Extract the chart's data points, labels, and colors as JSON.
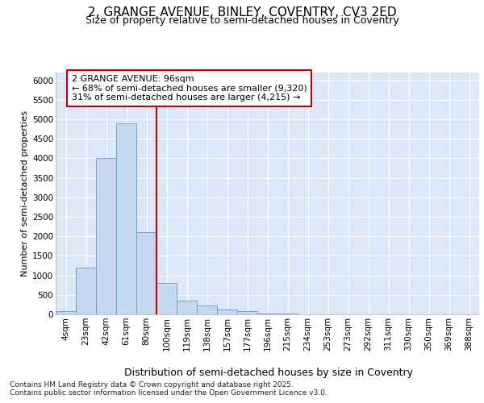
{
  "title_line1": "2, GRANGE AVENUE, BINLEY, COVENTRY, CV3 2ED",
  "title_line2": "Size of property relative to semi-detached houses in Coventry",
  "xlabel": "Distribution of semi-detached houses by size in Coventry",
  "ylabel": "Number of semi-detached properties",
  "categories": [
    "4sqm",
    "23sqm",
    "42sqm",
    "61sqm",
    "80sqm",
    "100sqm",
    "119sqm",
    "138sqm",
    "157sqm",
    "177sqm",
    "196sqm",
    "215sqm",
    "234sqm",
    "253sqm",
    "273sqm",
    "292sqm",
    "311sqm",
    "330sqm",
    "350sqm",
    "369sqm",
    "388sqm"
  ],
  "values": [
    75,
    1200,
    4000,
    4900,
    2100,
    800,
    350,
    230,
    130,
    75,
    30,
    25,
    5,
    0,
    0,
    0,
    0,
    0,
    0,
    0,
    0
  ],
  "bar_color": "#c5d8f0",
  "bar_edge_color": "#6699cc",
  "vline_x": 4.5,
  "annotation_line1": "2 GRANGE AVENUE: 96sqm",
  "annotation_line2": "← 68% of semi-detached houses are smaller (9,320)",
  "annotation_line3": "31% of semi-detached houses are larger (4,215) →",
  "ylim": [
    0,
    6200
  ],
  "yticks": [
    0,
    500,
    1000,
    1500,
    2000,
    2500,
    3000,
    3500,
    4000,
    4500,
    5000,
    5500,
    6000
  ],
  "grid_color": "#ffffff",
  "bg_color": "#dce8f8",
  "vline_color": "#cc0000",
  "ann_box_edge_color": "#cc0000",
  "footer_line1": "Contains HM Land Registry data © Crown copyright and database right 2025.",
  "footer_line2": "Contains public sector information licensed under the Open Government Licence v3.0.",
  "title1_fontsize": 11,
  "title2_fontsize": 9,
  "tick_fontsize": 7.5,
  "ylabel_fontsize": 8,
  "xlabel_fontsize": 9,
  "ann_fontsize": 8,
  "footer_fontsize": 6.5
}
